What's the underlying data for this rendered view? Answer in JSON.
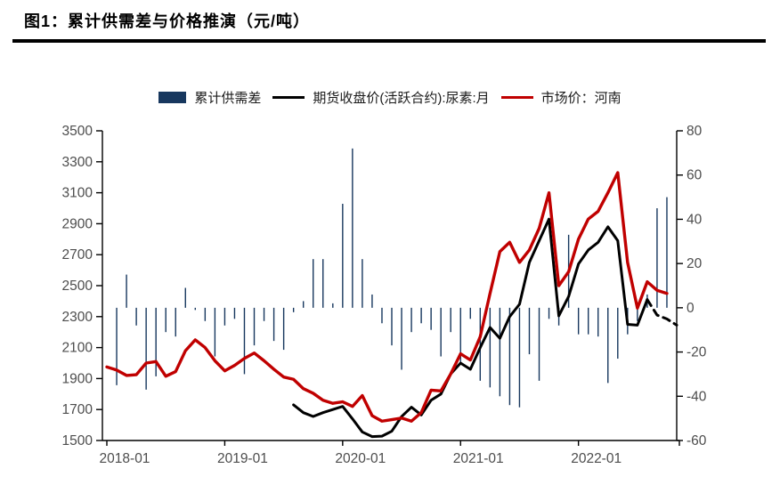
{
  "header": {
    "title": "图1：累计供需差与价格推演（元/吨）"
  },
  "legend": [
    {
      "label": "累计供需差",
      "swatch": "bar",
      "color": "#17375e"
    },
    {
      "label": "期货收盘价(活跃合约):尿素:月",
      "swatch": "line",
      "color": "#000000"
    },
    {
      "label": "市场价：河南",
      "swatch": "line",
      "color": "#c00000"
    }
  ],
  "chart_data": {
    "type": "combo",
    "title": "累计供需差与价格推演（元/吨）",
    "grid": false,
    "legend_position": "top-center",
    "x": [
      "2018-01",
      "2018-02",
      "2018-03",
      "2018-04",
      "2018-05",
      "2018-06",
      "2018-07",
      "2018-08",
      "2018-09",
      "2018-10",
      "2018-11",
      "2018-12",
      "2019-01",
      "2019-02",
      "2019-03",
      "2019-04",
      "2019-05",
      "2019-06",
      "2019-07",
      "2019-08",
      "2019-09",
      "2019-10",
      "2019-11",
      "2019-12",
      "2020-01",
      "2020-02",
      "2020-03",
      "2020-04",
      "2020-05",
      "2020-06",
      "2020-07",
      "2020-08",
      "2020-09",
      "2020-10",
      "2020-11",
      "2020-12",
      "2021-01",
      "2021-02",
      "2021-03",
      "2021-04",
      "2021-05",
      "2021-06",
      "2021-07",
      "2021-08",
      "2021-09",
      "2021-10",
      "2021-11",
      "2021-12",
      "2022-01",
      "2022-02",
      "2022-03",
      "2022-04",
      "2022-05",
      "2022-06",
      "2022-07",
      "2022-08",
      "2022-09",
      "2022-10",
      "2022-11"
    ],
    "series": [
      {
        "name": "累计供需差",
        "type": "bar",
        "axis": "right",
        "color": "#17375e",
        "values": [
          null,
          -35,
          15,
          -8,
          -37,
          -31,
          -11,
          -13,
          9,
          -1,
          -6,
          -22,
          -8,
          -5,
          -30,
          -17,
          -6,
          -15,
          -19,
          -2,
          3,
          22,
          22,
          2,
          47,
          72,
          22,
          6,
          -7,
          -17,
          -28,
          -11,
          -7,
          -10,
          -22,
          -11,
          -25,
          -5,
          -33,
          -36,
          -40,
          -44,
          -45,
          -21,
          -33,
          -5,
          -8,
          33,
          -12,
          -12,
          -13,
          -34,
          -23,
          -12,
          -6,
          6,
          45,
          50,
          null
        ]
      },
      {
        "name": "期货收盘价(活跃合约):尿素:月",
        "type": "line",
        "axis": "left",
        "color": "#000000",
        "dash_start_index": 55,
        "values": [
          null,
          null,
          null,
          null,
          null,
          null,
          null,
          null,
          null,
          null,
          null,
          null,
          null,
          null,
          null,
          null,
          null,
          null,
          null,
          1730,
          1680,
          1655,
          1680,
          1700,
          1720,
          1640,
          1555,
          1525,
          1528,
          1560,
          1655,
          1715,
          1665,
          1760,
          1800,
          1930,
          2000,
          1960,
          2100,
          2230,
          2160,
          2300,
          2380,
          2650,
          2790,
          2930,
          2305,
          2430,
          2640,
          2730,
          2780,
          2880,
          2790,
          2250,
          2245,
          2410,
          2310,
          2285,
          2245
        ]
      },
      {
        "name": "市场价：河南",
        "type": "line",
        "axis": "left",
        "color": "#c00000",
        "values": [
          1975,
          1955,
          1920,
          1925,
          2000,
          2010,
          1915,
          1945,
          2080,
          2150,
          2100,
          2015,
          1950,
          1985,
          2030,
          2065,
          2015,
          1960,
          1910,
          1895,
          1835,
          1805,
          1760,
          1740,
          1750,
          1720,
          1790,
          1660,
          1625,
          1635,
          1645,
          1625,
          1680,
          1825,
          1820,
          1930,
          2060,
          2020,
          2170,
          2450,
          2720,
          2780,
          2650,
          2730,
          2870,
          3100,
          2500,
          2590,
          2800,
          2930,
          2980,
          3100,
          3230,
          2650,
          2355,
          2525,
          2470,
          2450,
          null
        ]
      }
    ],
    "left_axis": {
      "min": 1500,
      "max": 3500,
      "step": 200,
      "ticks": [
        "1500",
        "1700",
        "1900",
        "2100",
        "2300",
        "2500",
        "2700",
        "2900",
        "3100",
        "3300",
        "3500"
      ]
    },
    "right_axis": {
      "min": -60,
      "max": 80,
      "step": 20,
      "ticks": [
        "-60",
        "-40",
        "-20",
        "0",
        "20",
        "40",
        "60",
        "80"
      ]
    },
    "x_ticks": [
      {
        "label": "2018-01",
        "month_index": 0
      },
      {
        "label": "2019-01",
        "month_index": 12
      },
      {
        "label": "2020-01",
        "month_index": 24
      },
      {
        "label": "2021-01",
        "month_index": 36
      },
      {
        "label": "2022-01",
        "month_index": 48
      }
    ],
    "colors": {
      "bar": "#17375e",
      "futures": "#000000",
      "market": "#c00000",
      "axis": "#000000",
      "tick_text": "#4d4d4d"
    }
  }
}
